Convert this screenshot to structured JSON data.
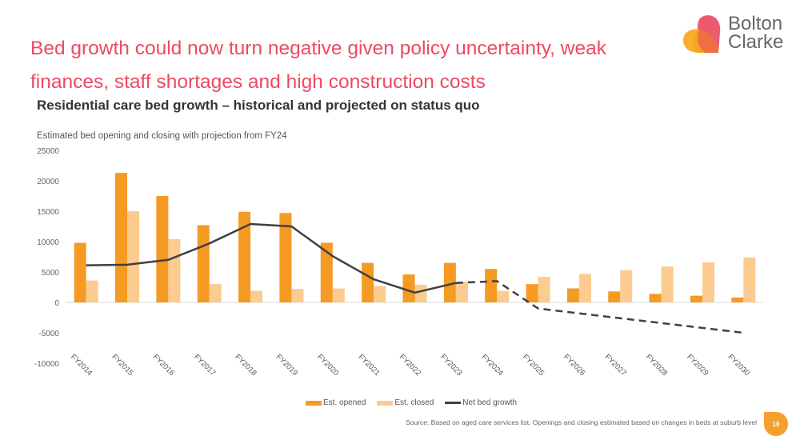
{
  "header": {
    "headline": "Bed growth could now turn negative given policy uncertainty, weak finances, staff shortages and high construction costs",
    "logo_text_line1": "Bolton",
    "logo_text_line2": "Clarke"
  },
  "chart_heading": "Residential care bed growth – historical and projected on status quo",
  "footer": {
    "source": "Source: Based on aged care services list. Openings and closing estimated based on changes in beds at suburb level",
    "page_number": "10"
  },
  "colors": {
    "opened": "#f59a23",
    "closed": "#fbcb90",
    "net": "#404040",
    "headline": "#ec4a62"
  },
  "chart_data": {
    "type": "bar",
    "title": "Estimated bed opening and closing with projection from FY24",
    "categories": [
      "FY2014",
      "FY2015",
      "FY2016",
      "FY2017",
      "FY2018",
      "FY2019",
      "FY2020",
      "FY2021",
      "FY2022",
      "FY2023",
      "FY2024",
      "FY2025",
      "FY2026",
      "FY2027",
      "FY2028",
      "FY2029",
      "FY2030"
    ],
    "series": [
      {
        "name": "Est. opened",
        "type": "bar",
        "values": [
          9800,
          21300,
          17500,
          12700,
          14900,
          14700,
          9800,
          6500,
          4600,
          6500,
          5500,
          3000,
          2300,
          1800,
          1400,
          1100,
          800
        ]
      },
      {
        "name": "Est. closed",
        "type": "bar",
        "values": [
          3600,
          15000,
          10400,
          3000,
          1900,
          2200,
          2300,
          2700,
          2900,
          3400,
          1900,
          4200,
          4700,
          5300,
          5900,
          6600,
          7400
        ]
      },
      {
        "name": "Net bed growth",
        "type": "line",
        "values": [
          6100,
          6200,
          7000,
          9700,
          12900,
          12500,
          7600,
          3800,
          1600,
          3200,
          3500,
          -1000,
          -1800,
          -2600,
          -3400,
          -4200,
          -5000
        ],
        "projected_from": "FY2023"
      }
    ],
    "ylim": [
      -10000,
      25000
    ],
    "yticks": [
      -10000,
      -5000,
      0,
      5000,
      10000,
      15000,
      20000,
      25000
    ],
    "grid": false,
    "legend": "bottom"
  }
}
